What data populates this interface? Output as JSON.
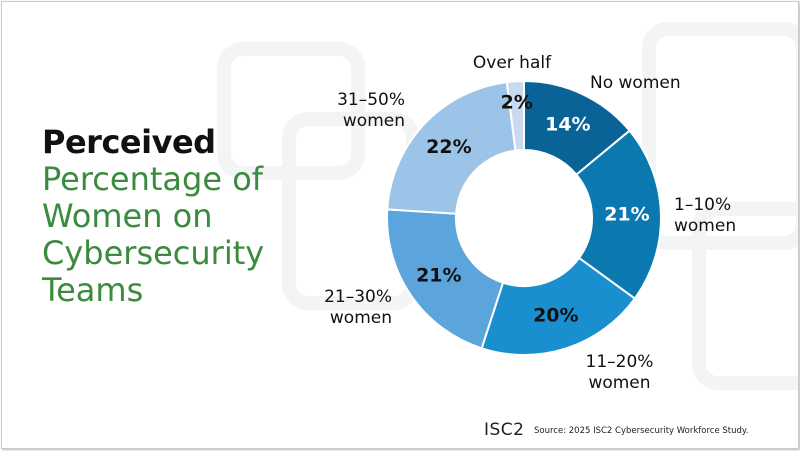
{
  "chart_data": {
    "type": "donut",
    "title": "Perceived",
    "subtitle": "Percentage of Women on Cybersecurity Teams",
    "categories": [
      "No women",
      "1–10% women",
      "11–20% women",
      "21–30% women",
      "31–50% women",
      "Over half"
    ],
    "values": [
      14,
      21,
      20,
      21,
      22,
      2
    ],
    "value_labels": [
      "14%",
      "21%",
      "20%",
      "21%",
      "22%",
      "2%"
    ],
    "colors": [
      "#0a6396",
      "#0b78b0",
      "#1a8fd0",
      "#5ba4dc",
      "#9cc3e8",
      "#c8daf0"
    ]
  },
  "footer": {
    "logo": "ISC2",
    "source": "Source: 2025 ISC2 Cybersecurity Workforce Study."
  }
}
